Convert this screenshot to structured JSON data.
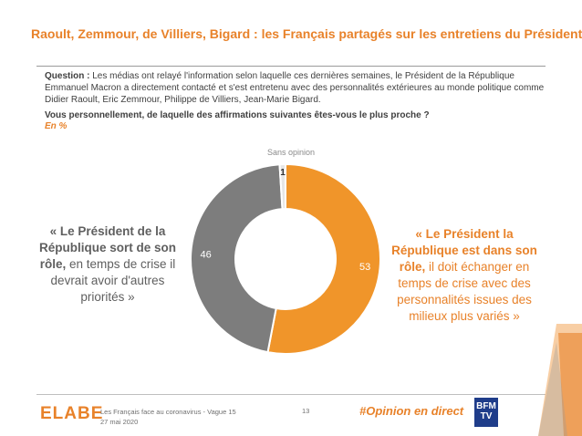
{
  "title": "Raoult, Zemmour, de Villiers, Bigard : les Français partagés sur les entretiens du Président",
  "question": {
    "label": "Question :",
    "text": " Les médias ont relayé l'information selon laquelle ces dernières semaines, le Président de la République Emmanuel Macron a directement contacté et s'est entretenu avec des personnalités extérieures au monde politique comme Didier Raoult, Eric Zemmour, Philippe de Villiers, Jean-Marie Bigard.",
    "ask": "Vous personnellement, de laquelle des affirmations suivantes êtes-vous le plus proche ?",
    "unit": "En %"
  },
  "quotes": {
    "left_bold": "« Le Président de la République sort de son rôle,",
    "left_rest": " en temps de crise il devrait avoir d'autres priorités »",
    "right_bold": "« Le Président la République est dans son rôle,",
    "right_rest": " il doit échanger en temps de crise avec des personnalités issues des milieux plus variés »"
  },
  "chart_data": {
    "type": "pie",
    "variant": "donut",
    "slices": [
      {
        "label": "« Le Président la République est dans son rôle »",
        "value": 53,
        "color": "#f0952a"
      },
      {
        "label": "« Le Président de la République sort de son rôle »",
        "value": 46,
        "color": "#7d7d7d"
      },
      {
        "label": "Sans opinion",
        "value": 1,
        "color": "#e6e6e6"
      }
    ],
    "slice_label_printed": "Sans opinion"
  },
  "footer": {
    "logo": "ELABE",
    "survey": "Les Français face au coronavirus - Vague 15",
    "date": "27 mai 2020",
    "page": "13",
    "hashtag": "#Opinion en direct",
    "partner_logo": "BFM TV"
  },
  "colors": {
    "accent": "#e8822a",
    "grey": "#7d7d7d"
  }
}
